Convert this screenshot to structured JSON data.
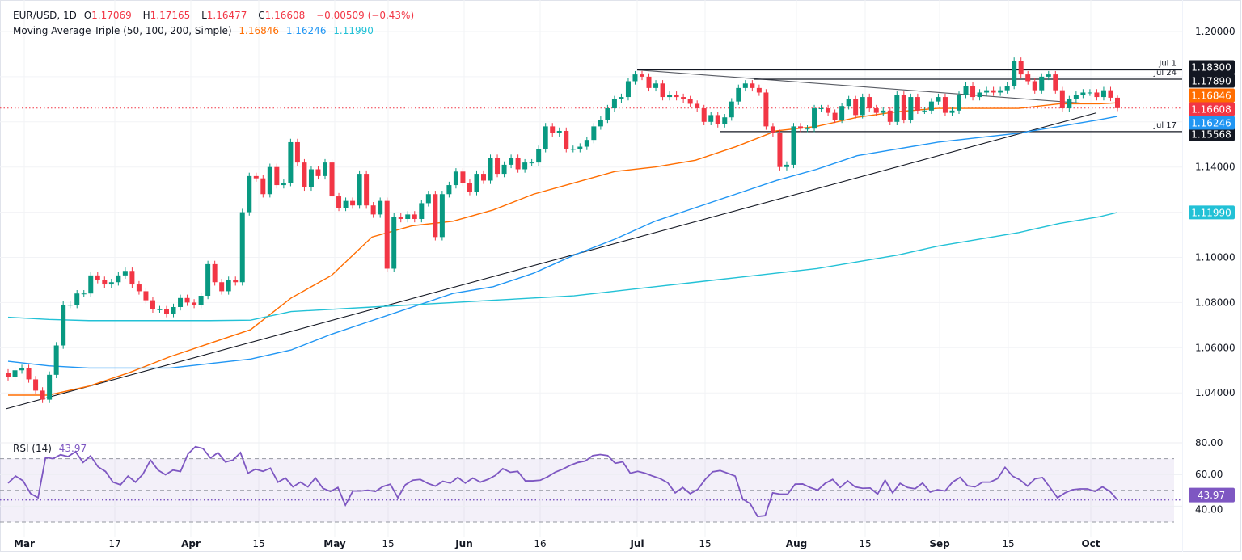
{
  "header": {
    "symbol": "EUR/USD, 1D",
    "open_label": "O",
    "open": "1.17069",
    "high_label": "H",
    "high": "1.17165",
    "low_label": "L",
    "low": "1.16477",
    "close_label": "C",
    "close": "1.16608",
    "change": "−0.00509 (−0.43%)",
    "ma_title": "Moving Average Triple (50, 100, 200, Simple)",
    "ma50": "1.16846",
    "ma100": "1.16246",
    "ma200": "1.11990"
  },
  "rsi_header": {
    "title": "RSI (14)",
    "value": "43.97"
  },
  "colors": {
    "up": "#089981",
    "down": "#f23645",
    "ma50": "#ff6d00",
    "ma100": "#2196f3",
    "ma200": "#22c1d6",
    "rsi": "#7e57c2",
    "trendline": "#131722"
  },
  "chart_data": [
    {
      "type": "candlestick",
      "title": "EUR/USD, 1D",
      "x_tick_labels": [
        "Mar",
        "17",
        "Apr",
        "15",
        "May",
        "15",
        "Jun",
        "16",
        "Jul",
        "15",
        "Aug",
        "15",
        "Sep",
        "15",
        "Oct"
      ],
      "y_tick_labels": [
        "1.20000",
        "1.14000",
        "1.10000",
        "1.08000",
        "1.06000",
        "1.04000"
      ],
      "ylim": [
        1.02,
        1.205
      ],
      "grid": true,
      "last_candle": {
        "open": 1.17069,
        "high": 1.17165,
        "low": 1.16477,
        "close": 1.16608
      },
      "closes": [
        1.047,
        1.05,
        1.051,
        1.046,
        1.041,
        1.037,
        1.048,
        1.061,
        1.079,
        1.079,
        1.084,
        1.084,
        1.092,
        1.09,
        1.088,
        1.089,
        1.092,
        1.094,
        1.088,
        1.085,
        1.081,
        1.077,
        1.077,
        1.075,
        1.078,
        1.082,
        1.08,
        1.079,
        1.083,
        1.097,
        1.089,
        1.085,
        1.09,
        1.089,
        1.12,
        1.136,
        1.135,
        1.128,
        1.14,
        1.132,
        1.133,
        1.151,
        1.142,
        1.131,
        1.139,
        1.136,
        1.142,
        1.127,
        1.122,
        1.125,
        1.123,
        1.137,
        1.123,
        1.119,
        1.125,
        1.095,
        1.118,
        1.117,
        1.119,
        1.117,
        1.124,
        1.128,
        1.109,
        1.128,
        1.132,
        1.138,
        1.133,
        1.129,
        1.137,
        1.134,
        1.144,
        1.137,
        1.141,
        1.144,
        1.139,
        1.142,
        1.142,
        1.148,
        1.158,
        1.155,
        1.156,
        1.148,
        1.148,
        1.149,
        1.152,
        1.158,
        1.161,
        1.166,
        1.17,
        1.171,
        1.178,
        1.181,
        1.18,
        1.175,
        1.177,
        1.171,
        1.172,
        1.171,
        1.17,
        1.168,
        1.166,
        1.16,
        1.163,
        1.159,
        1.162,
        1.169,
        1.175,
        1.177,
        1.175,
        1.173,
        1.158,
        1.155,
        1.14,
        1.141,
        1.158,
        1.157,
        1.157,
        1.166,
        1.166,
        1.164,
        1.161,
        1.167,
        1.17,
        1.163,
        1.171,
        1.166,
        1.164,
        1.165,
        1.16,
        1.172,
        1.161,
        1.171,
        1.165,
        1.165,
        1.169,
        1.171,
        1.164,
        1.165,
        1.172,
        1.176,
        1.171,
        1.173,
        1.174,
        1.173,
        1.174,
        1.176,
        1.187,
        1.181,
        1.178,
        1.174,
        1.18,
        1.181,
        1.174,
        1.166,
        1.17,
        1.172,
        1.173,
        1.173,
        1.171,
        1.174,
        1.1707,
        1.16608
      ],
      "series": [
        {
          "name": "MA 50",
          "color": "#ff6d00",
          "values": [
            1.039,
            1.039,
            1.043,
            1.049,
            1.056,
            1.062,
            1.068,
            1.082,
            1.092,
            1.109,
            1.114,
            1.116,
            1.121,
            1.128,
            1.133,
            1.138,
            1.14,
            1.143,
            1.149,
            1.156,
            1.158,
            1.162,
            1.1645,
            1.166,
            1.166,
            1.166,
            1.168,
            1.168,
            1.16846
          ]
        },
        {
          "name": "MA 100",
          "color": "#2196f3",
          "values": [
            1.054,
            1.052,
            1.051,
            1.051,
            1.051,
            1.053,
            1.055,
            1.059,
            1.066,
            1.072,
            1.078,
            1.084,
            1.087,
            1.093,
            1.101,
            1.108,
            1.116,
            1.122,
            1.128,
            1.134,
            1.139,
            1.145,
            1.148,
            1.151,
            1.153,
            1.155,
            1.158,
            1.161,
            1.16246
          ]
        },
        {
          "name": "MA 200",
          "color": "#22c1d6",
          "values": [
            1.0735,
            1.0725,
            1.072,
            1.072,
            1.072,
            1.072,
            1.0722,
            1.076,
            1.077,
            1.078,
            1.079,
            1.08,
            1.081,
            1.082,
            1.083,
            1.085,
            1.087,
            1.089,
            1.091,
            1.093,
            1.095,
            1.098,
            1.101,
            1.105,
            1.108,
            1.111,
            1.115,
            1.118,
            1.1199
          ]
        }
      ],
      "trendlines": [
        {
          "kind": "ascending",
          "from_price": 1.033,
          "to_price": 1.164
        },
        {
          "kind": "descending",
          "from_price": 1.183,
          "to_price": 1.168
        }
      ],
      "horizontal_levels": [
        {
          "label": "Jul 1",
          "price": 1.183,
          "tag": "1.18300"
        },
        {
          "label": "Jul 24",
          "price": 1.1789,
          "tag": "1.17890"
        },
        {
          "label": "Jul 17",
          "price": 1.15568,
          "tag": "1.15568"
        }
      ],
      "price_tags": [
        {
          "text": "1.16846",
          "price": 1.16846,
          "color": "#ff6d00",
          "top": 1.1726
        },
        {
          "text": "1.16608",
          "price": 1.16608,
          "color": "#f23645",
          "top": 1.16608
        },
        {
          "text": "1.16246",
          "price": 1.16246,
          "color": "#2196f3",
          "top": 1.1601
        },
        {
          "text": "1.11990",
          "price": 1.1199,
          "color": "#22c1d6",
          "top": 1.1199
        }
      ],
      "current_price": 1.16608
    },
    {
      "type": "line",
      "title": "RSI (14)",
      "ylim": [
        20,
        82
      ],
      "y_tick_labels": [
        "80.00",
        "60.00",
        "40.00"
      ],
      "bands": {
        "upper": 70,
        "middle": 50,
        "lower": 30
      },
      "current": 43.97,
      "values": [
        54.6,
        59,
        56,
        48,
        45.3,
        70.8,
        70,
        72.5,
        71.3,
        74.4,
        67.6,
        71.8,
        64.9,
        61.9,
        55.2,
        53.5,
        59,
        55.2,
        60.3,
        69.1,
        62.8,
        59.9,
        62.8,
        61.9,
        73,
        77.6,
        76.4,
        70.4,
        73.8,
        67.9,
        69.1,
        73.8,
        60.8,
        63.4,
        62,
        64,
        55.2,
        57.8,
        52.2,
        55.2,
        52.2,
        57.8,
        51.3,
        49.3,
        51.8,
        40.7,
        49.6,
        49.6,
        50.1,
        49.3,
        52.4,
        53.9,
        45.3,
        53.5,
        56.4,
        56.9,
        54.4,
        52.7,
        55.7,
        54.6,
        58.2,
        54.6,
        57.8,
        55.2,
        56.9,
        59.4,
        63.7,
        61.4,
        62,
        56,
        56,
        56.4,
        58.6,
        61.5,
        63.4,
        65.8,
        67.6,
        68.5,
        71.9,
        72.6,
        71.9,
        67.1,
        68,
        60.8,
        62,
        60.8,
        59,
        57.4,
        54.8,
        48.4,
        51.8,
        47.9,
        50.6,
        56.9,
        61.7,
        62.5,
        60.8,
        59,
        44.5,
        41.6,
        33.5,
        34,
        48.4,
        47.6,
        47.6,
        53.9,
        54,
        51.8,
        50.1,
        54.4,
        56.9,
        51.8,
        56,
        52.2,
        51.3,
        51.5,
        47.6,
        56.4,
        48.4,
        54.4,
        51.8,
        51,
        54.6,
        48.9,
        50.4,
        49.6,
        55.2,
        58.2,
        52.9,
        52.2,
        55.2,
        55.2,
        57.4,
        64.5,
        59,
        56.6,
        52.7,
        57.3,
        58.1,
        51.8,
        45.3,
        48.4,
        50.4,
        50.9,
        50.9,
        49.3,
        52.2,
        49.3,
        43.97
      ]
    }
  ]
}
